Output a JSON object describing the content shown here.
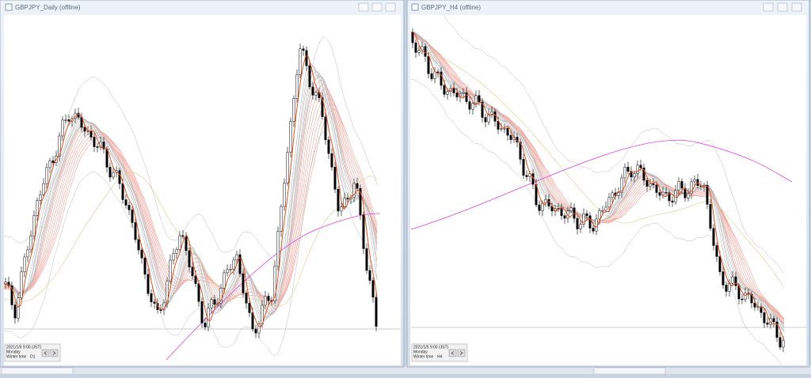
{
  "windows": [
    {
      "title": "GBPJPY_Daily (offline)",
      "info": {
        "datetime": "2021/1/6 9:00 (JST)",
        "day": "Monday",
        "time_mode": "Winter time",
        "timeframe": "D1"
      }
    },
    {
      "title": "GBPJPY_H4 (offline)",
      "info": {
        "datetime": "2021/1/5 9:00 (JST)",
        "day": "Monday",
        "time_mode": "Winter time",
        "timeframe": "H4"
      }
    }
  ]
}
